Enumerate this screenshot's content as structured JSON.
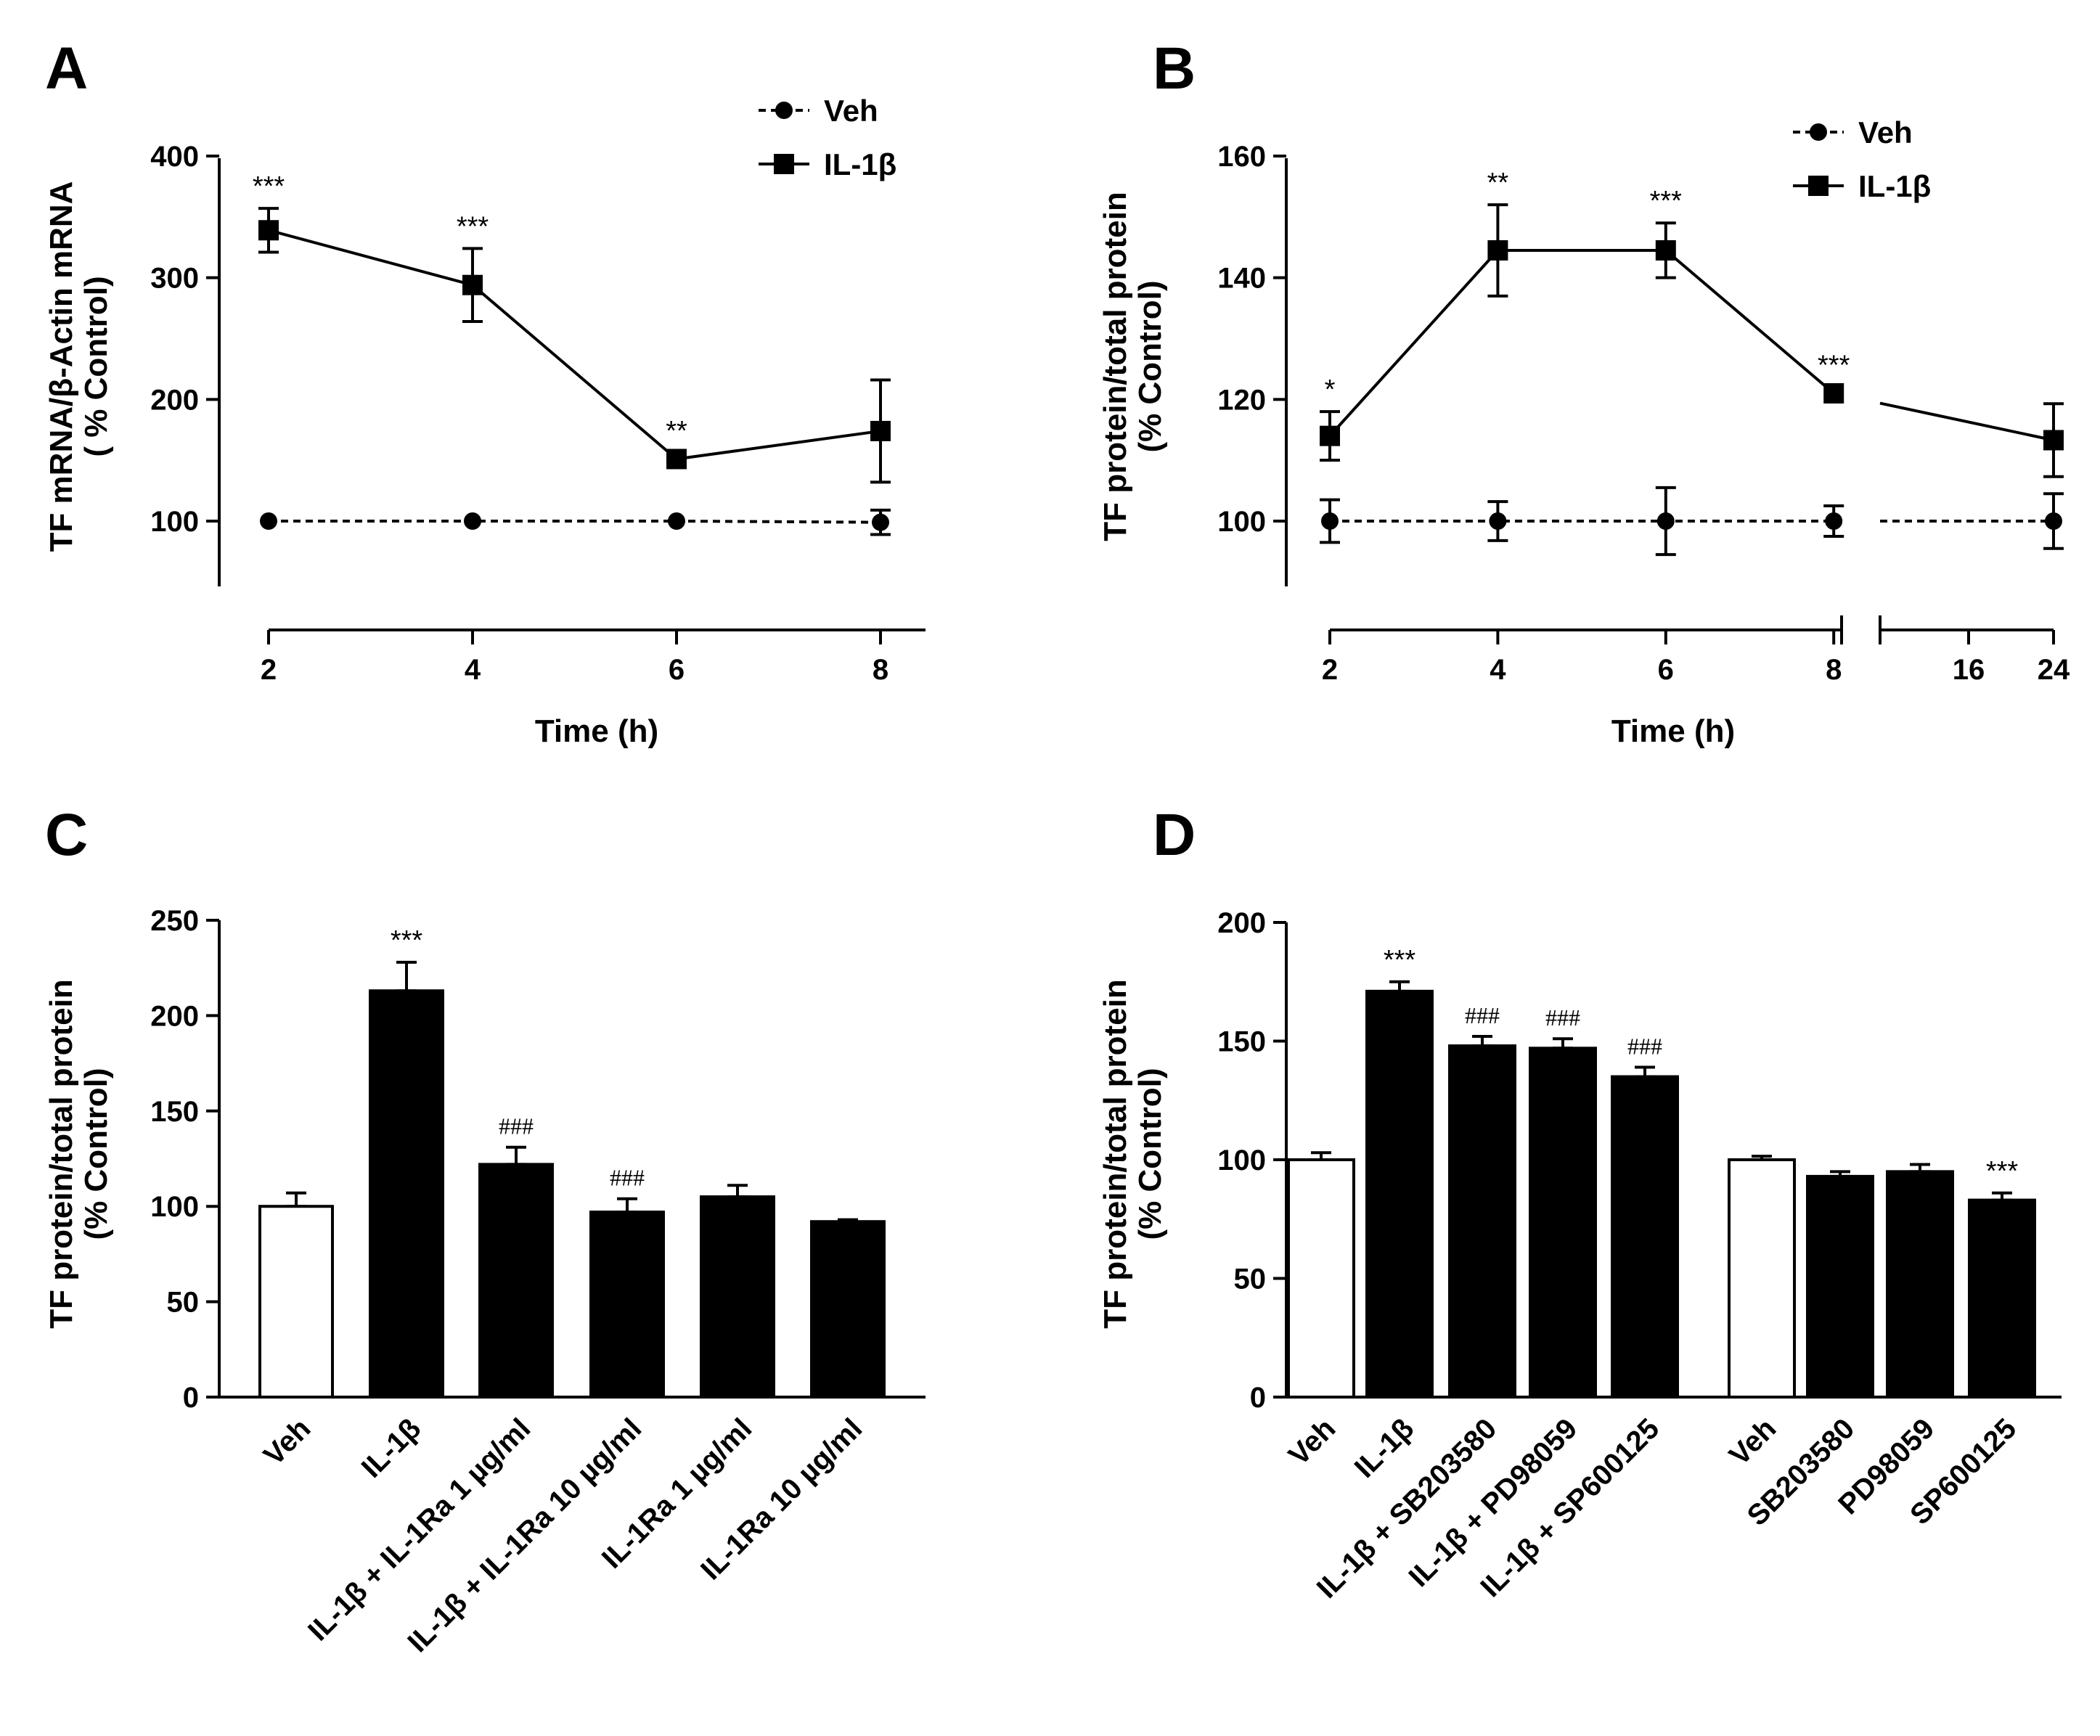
{
  "chart_data": [
    {
      "panel": "A",
      "type": "line",
      "xlabel": "Time (h)",
      "ylabel": [
        "TF mRNA/β-Actin mRNA",
        "( % Control)"
      ],
      "xlim": [
        2,
        8
      ],
      "ylim": [
        50,
        400
      ],
      "xticks": [
        "2",
        "4",
        "6",
        "8"
      ],
      "yticks": [
        "100",
        "200",
        "300",
        "400"
      ],
      "legend_position": "top-right",
      "x": [
        2,
        4,
        6,
        8
      ],
      "series": [
        {
          "name": "Veh",
          "marker": "circle",
          "line": "dashed",
          "values": [
            100,
            100,
            100,
            99
          ],
          "err": [
            2,
            2,
            2,
            10
          ]
        },
        {
          "name": "IL-1β",
          "marker": "square",
          "line": "solid",
          "values": [
            339,
            294,
            151,
            174
          ],
          "err": [
            18,
            30,
            5,
            42
          ]
        }
      ],
      "annotations": [
        {
          "x": 2,
          "text": "***"
        },
        {
          "x": 4,
          "text": "***"
        },
        {
          "x": 6,
          "text": "**"
        }
      ]
    },
    {
      "panel": "B",
      "type": "line",
      "xlabel": "Time (h)",
      "ylabel": [
        "TF protein/total protein",
        "(% Control)"
      ],
      "axis_break": true,
      "xticks": [
        "2",
        "4",
        "6",
        "8",
        "16",
        "24"
      ],
      "ylim": [
        90,
        160
      ],
      "yticks": [
        "100",
        "120",
        "140",
        "160"
      ],
      "legend_position": "top-right",
      "x": [
        2,
        4,
        6,
        8,
        24
      ],
      "series": [
        {
          "name": "Veh",
          "marker": "circle",
          "line": "dashed",
          "values": [
            100,
            100,
            100,
            100,
            100
          ],
          "err": [
            3.5,
            3.2,
            5.5,
            2.5,
            4.5
          ]
        },
        {
          "name": "IL-1β",
          "marker": "square",
          "line": "solid",
          "values": [
            114,
            144.5,
            144.5,
            121,
            113.3
          ],
          "err": [
            4,
            7.5,
            4.5,
            1,
            6
          ]
        }
      ],
      "annotations": [
        {
          "x": 2,
          "text": "*"
        },
        {
          "x": 4,
          "text": "**"
        },
        {
          "x": 6,
          "text": "***"
        },
        {
          "x": 8,
          "text": "***"
        }
      ]
    },
    {
      "panel": "C",
      "type": "bar",
      "ylabel": [
        "TF protein/total protein",
        "(% Control)"
      ],
      "ylim": [
        0,
        250
      ],
      "yticks": [
        "0",
        "50",
        "100",
        "150",
        "200",
        "250"
      ],
      "categories": [
        "Veh",
        "IL-1β",
        "IL-1β + IL-1Ra 1 µg/ml",
        "IL-1β + IL-1Ra 10 µg/ml",
        "IL-1Ra 1 µg/ml",
        "IL-1Ra 10 µg/ml"
      ],
      "values": [
        100,
        213,
        122,
        97,
        105,
        92
      ],
      "err": [
        7,
        15,
        9,
        7,
        6,
        1
      ],
      "colors": [
        "#ffffff",
        "#000000",
        "#000000",
        "#000000",
        "#000000",
        "#000000"
      ],
      "annotations": [
        {
          "index": 1,
          "text": "***"
        },
        {
          "index": 2,
          "text": "###"
        },
        {
          "index": 3,
          "text": "###"
        }
      ]
    },
    {
      "panel": "D",
      "type": "bar",
      "ylabel": [
        "TF protein/total protein",
        "(% Control)"
      ],
      "ylim": [
        0,
        200
      ],
      "yticks": [
        "0",
        "50",
        "100",
        "150",
        "200"
      ],
      "categories": [
        "Veh",
        "IL-1β",
        "IL-1β + SB203580",
        "IL-1β + PD98059",
        "IL-1β + SP600125",
        "Veh",
        "SB203580",
        "PD98059",
        "SP600125"
      ],
      "groups": [
        5,
        4
      ],
      "values": [
        100,
        171,
        148,
        147,
        135,
        100,
        93,
        95,
        83
      ],
      "err": [
        3,
        4,
        4,
        4,
        4,
        1.5,
        2,
        3,
        3
      ],
      "colors": [
        "#ffffff",
        "#000000",
        "#000000",
        "#000000",
        "#000000",
        "#ffffff",
        "#000000",
        "#000000",
        "#000000"
      ],
      "annotations": [
        {
          "index": 1,
          "text": "***"
        },
        {
          "index": 2,
          "text": "###"
        },
        {
          "index": 3,
          "text": "###"
        },
        {
          "index": 4,
          "text": "###"
        },
        {
          "index": 8,
          "text": "***"
        }
      ]
    }
  ]
}
